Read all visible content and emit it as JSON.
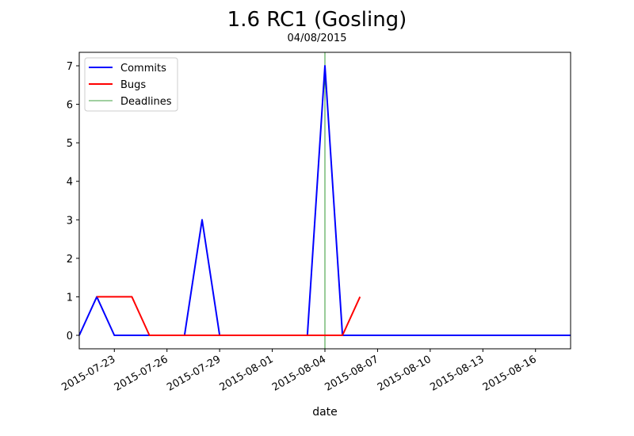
{
  "chart_data": {
    "type": "line",
    "title": "1.6 RC1 (Gosling)",
    "subtitle": "04/08/2015",
    "xlabel": "date",
    "ylabel": "",
    "x": [
      "2015-07-21",
      "2015-07-22",
      "2015-07-23",
      "2015-07-24",
      "2015-07-25",
      "2015-07-26",
      "2015-07-27",
      "2015-07-28",
      "2015-07-29",
      "2015-07-30",
      "2015-07-31",
      "2015-08-01",
      "2015-08-02",
      "2015-08-03",
      "2015-08-04",
      "2015-08-05",
      "2015-08-06",
      "2015-08-07",
      "2015-08-08",
      "2015-08-09",
      "2015-08-10",
      "2015-08-11",
      "2015-08-12",
      "2015-08-13",
      "2015-08-14",
      "2015-08-15",
      "2015-08-16",
      "2015-08-17",
      "2015-08-18"
    ],
    "series": [
      {
        "name": "Commits",
        "color": "#0000ff",
        "values": [
          0,
          1,
          0,
          0,
          0,
          0,
          0,
          3,
          0,
          0,
          0,
          0,
          0,
          0,
          7,
          0,
          0,
          0,
          0,
          0,
          0,
          0,
          0,
          0,
          0,
          0,
          0,
          0,
          0
        ]
      },
      {
        "name": "Bugs",
        "color": "#ff0000",
        "values": [
          null,
          1,
          1,
          1,
          0,
          0,
          0,
          0,
          0,
          0,
          0,
          0,
          0,
          0,
          0,
          0,
          1,
          null,
          null,
          null,
          null,
          null,
          null,
          null,
          null,
          null,
          null,
          null,
          null
        ]
      }
    ],
    "deadlines": {
      "name": "Deadlines",
      "color": "#008000",
      "dates": [
        "2015-08-04"
      ]
    },
    "xlim": [
      "2015-07-21",
      "2015-08-18"
    ],
    "ylim": [
      -0.35,
      7.35
    ],
    "x_ticks": [
      "2015-07-23",
      "2015-07-26",
      "2015-07-29",
      "2015-08-01",
      "2015-08-04",
      "2015-08-07",
      "2015-08-10",
      "2015-08-13",
      "2015-08-16"
    ],
    "y_ticks": [
      0,
      1,
      2,
      3,
      4,
      5,
      6,
      7
    ],
    "legend": "top-left",
    "grid": false
  }
}
